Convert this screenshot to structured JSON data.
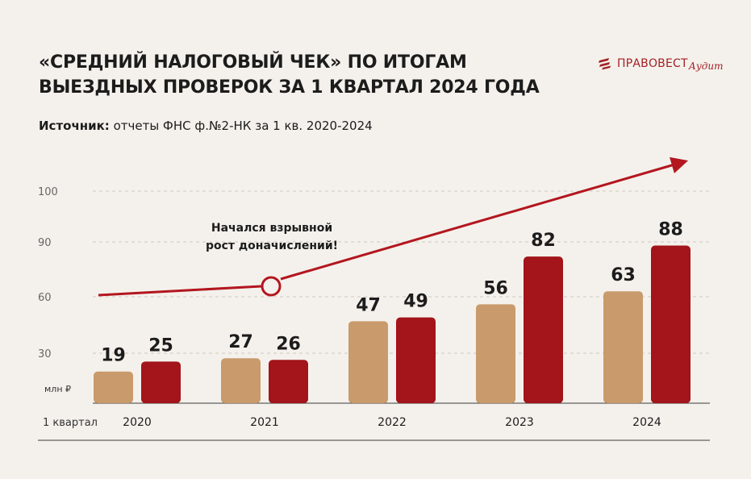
{
  "title_line1": "«Средний налоговый чек» по итогам",
  "title_line2": "выездных проверок за 1 квартал 2024 года",
  "source_label": "Источник:",
  "source_text": "отчеты ФНС ф.№2-НК за 1 кв. 2020-2024",
  "logo": {
    "word1": "ПРАВОВЕСТ",
    "word2": "Аудит",
    "color": "#a32025"
  },
  "chart_data": {
    "type": "bar",
    "categories": [
      "2020",
      "2021",
      "2022",
      "2023",
      "2024"
    ],
    "series": [
      {
        "values": [
          19,
          27,
          47,
          56,
          63
        ],
        "color": "#c99a6b"
      },
      {
        "values": [
          25,
          26,
          49,
          82,
          88
        ],
        "color": "#a3141b"
      }
    ],
    "yticks": [
      30,
      60,
      90,
      100
    ],
    "unit_label": "млн ₽",
    "period_label": "1 квартал",
    "annotation_line1": "Начался взрывной",
    "annotation_line2": "рост доначислений!",
    "trend_color": "#b3161f",
    "grid": "dashed"
  }
}
